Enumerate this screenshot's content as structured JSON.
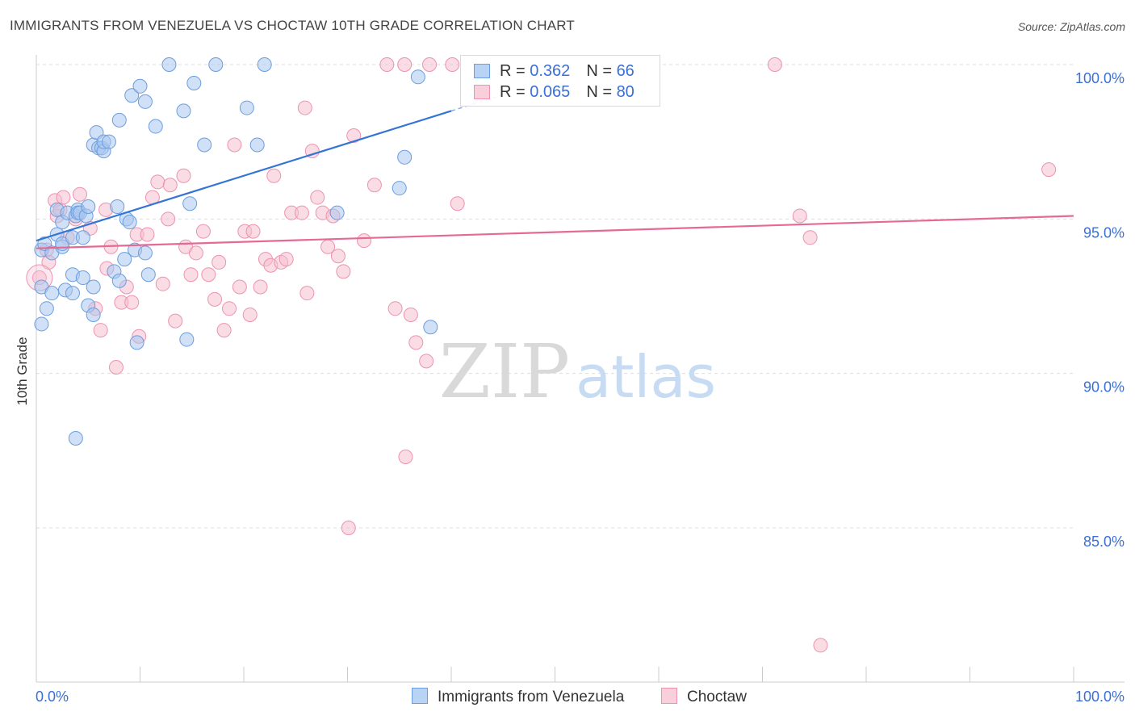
{
  "title": "IMMIGRANTS FROM VENEZUELA VS CHOCTAW 10TH GRADE CORRELATION CHART",
  "source": "Source: ZipAtlas.com",
  "watermark": {
    "zip": "ZIP",
    "atlas": "atlas"
  },
  "legend": {
    "rows": [
      {
        "r_label": "R = ",
        "r_value": "0.362",
        "n_label": "N = ",
        "n_value": "66"
      },
      {
        "r_label": "R = ",
        "r_value": "0.065",
        "n_label": "N = ",
        "n_value": "80"
      }
    ]
  },
  "bottom_legend": [
    "Immigrants from Venezuela",
    "Choctaw"
  ],
  "colors": {
    "blue_fill": "#a9c7ef",
    "blue_stroke": "#6a9ee0",
    "blue_line": "#3474d4",
    "pink_fill": "#f6bfd0",
    "pink_stroke": "#ec93b0",
    "pink_line": "#e46a94",
    "tick_label": "#3a6fd8"
  },
  "chart_data": {
    "type": "scatter",
    "title": "IMMIGRANTS FROM VENEZUELA VS CHOCTAW 10TH GRADE CORRELATION CHART",
    "xlabel": "",
    "ylabel": "10th Grade",
    "xlim": [
      0,
      100
    ],
    "ylim": [
      80.5,
      100.8
    ],
    "x_tick_labels": [
      "0.0%",
      "100.0%"
    ],
    "y_ticks": [
      85,
      90,
      95,
      100
    ],
    "y_tick_labels": [
      "85.0%",
      "90.0%",
      "95.0%",
      "100.0%"
    ],
    "grid": true,
    "legend_position": "top-center",
    "series": [
      {
        "name": "Immigrants from Venezuela",
        "color": "#6a9ee0",
        "trend": {
          "x": [
            0,
            40
          ],
          "y": [
            94.3,
            98.5
          ]
        },
        "points": [
          [
            0.5,
            94.0
          ],
          [
            0.5,
            92.8
          ],
          [
            0.5,
            91.6
          ],
          [
            0.8,
            94.2
          ],
          [
            1.0,
            92.1
          ],
          [
            1.5,
            93.9
          ],
          [
            1.5,
            92.6
          ],
          [
            2.0,
            94.5
          ],
          [
            2.0,
            95.3
          ],
          [
            2.5,
            94.1
          ],
          [
            2.5,
            94.9
          ],
          [
            2.5,
            94.2
          ],
          [
            2.8,
            92.7
          ],
          [
            3.0,
            95.2
          ],
          [
            3.5,
            93.2
          ],
          [
            3.5,
            92.6
          ],
          [
            3.5,
            94.4
          ],
          [
            3.8,
            95.1
          ],
          [
            4.0,
            95.3
          ],
          [
            4.5,
            94.4
          ],
          [
            4.0,
            95.2
          ],
          [
            4.2,
            95.2
          ],
          [
            4.5,
            93.1
          ],
          [
            4.8,
            95.1
          ],
          [
            5.0,
            92.2
          ],
          [
            5.0,
            95.4
          ],
          [
            5.5,
            92.8
          ],
          [
            5.5,
            91.9
          ],
          [
            5.5,
            97.4
          ],
          [
            5.8,
            97.8
          ],
          [
            6.0,
            97.3
          ],
          [
            6.3,
            97.3
          ],
          [
            6.5,
            97.2
          ],
          [
            6.5,
            97.5
          ],
          [
            7.0,
            97.5
          ],
          [
            7.5,
            93.3
          ],
          [
            7.8,
            95.4
          ],
          [
            8.0,
            93.0
          ],
          [
            8.0,
            98.2
          ],
          [
            8.5,
            93.7
          ],
          [
            8.7,
            95.0
          ],
          [
            9.0,
            94.9
          ],
          [
            9.2,
            99.0
          ],
          [
            9.5,
            94.0
          ],
          [
            9.7,
            91.0
          ],
          [
            10.0,
            99.3
          ],
          [
            10.5,
            98.8
          ],
          [
            10.5,
            93.9
          ],
          [
            10.8,
            93.2
          ],
          [
            11.5,
            98.0
          ],
          [
            12.8,
            100.0
          ],
          [
            14.2,
            98.5
          ],
          [
            14.5,
            91.1
          ],
          [
            14.8,
            95.5
          ],
          [
            15.2,
            99.4
          ],
          [
            16.2,
            97.4
          ],
          [
            17.3,
            100.0
          ],
          [
            20.3,
            98.6
          ],
          [
            21.3,
            97.4
          ],
          [
            22.0,
            100.0
          ],
          [
            29.0,
            95.2
          ],
          [
            35.0,
            96.0
          ],
          [
            35.5,
            97.0
          ],
          [
            36.8,
            99.6
          ],
          [
            38.0,
            91.5
          ],
          [
            3.8,
            87.9
          ]
        ]
      },
      {
        "name": "Choctaw",
        "color": "#ec93b0",
        "trend": {
          "x": [
            0,
            100
          ],
          "y": [
            94.05,
            95.1
          ]
        },
        "points": [
          [
            0.3,
            93.1
          ],
          [
            1.0,
            94.0
          ],
          [
            1.2,
            93.6
          ],
          [
            1.8,
            95.6
          ],
          [
            2.0,
            95.1
          ],
          [
            2.3,
            95.3
          ],
          [
            2.6,
            95.7
          ],
          [
            3.0,
            94.4
          ],
          [
            3.8,
            95.0
          ],
          [
            4.2,
            95.8
          ],
          [
            5.2,
            94.7
          ],
          [
            5.7,
            92.1
          ],
          [
            6.2,
            91.4
          ],
          [
            6.7,
            95.3
          ],
          [
            6.8,
            93.4
          ],
          [
            7.2,
            94.1
          ],
          [
            7.7,
            90.2
          ],
          [
            8.2,
            92.3
          ],
          [
            8.7,
            92.8
          ],
          [
            9.2,
            92.3
          ],
          [
            9.7,
            94.5
          ],
          [
            9.9,
            91.2
          ],
          [
            10.7,
            94.5
          ],
          [
            11.2,
            95.7
          ],
          [
            11.7,
            96.2
          ],
          [
            12.2,
            92.9
          ],
          [
            12.7,
            95.0
          ],
          [
            12.9,
            96.1
          ],
          [
            13.4,
            91.7
          ],
          [
            14.2,
            96.4
          ],
          [
            14.4,
            94.1
          ],
          [
            14.9,
            93.2
          ],
          [
            15.4,
            93.9
          ],
          [
            16.1,
            94.6
          ],
          [
            16.6,
            93.2
          ],
          [
            17.2,
            92.4
          ],
          [
            17.6,
            93.6
          ],
          [
            18.1,
            91.4
          ],
          [
            18.6,
            92.1
          ],
          [
            19.1,
            97.4
          ],
          [
            19.6,
            92.8
          ],
          [
            20.1,
            94.6
          ],
          [
            20.6,
            91.9
          ],
          [
            20.9,
            94.6
          ],
          [
            21.6,
            92.8
          ],
          [
            22.1,
            93.7
          ],
          [
            22.6,
            93.5
          ],
          [
            22.9,
            96.4
          ],
          [
            23.6,
            93.6
          ],
          [
            24.1,
            93.7
          ],
          [
            24.6,
            95.2
          ],
          [
            25.6,
            95.2
          ],
          [
            25.9,
            98.6
          ],
          [
            26.1,
            92.6
          ],
          [
            26.6,
            97.2
          ],
          [
            27.1,
            95.7
          ],
          [
            27.6,
            95.2
          ],
          [
            28.1,
            94.1
          ],
          [
            28.6,
            95.1
          ],
          [
            29.1,
            93.8
          ],
          [
            29.6,
            93.3
          ],
          [
            30.1,
            85.0
          ],
          [
            30.6,
            97.7
          ],
          [
            31.6,
            94.3
          ],
          [
            32.6,
            96.1
          ],
          [
            34.6,
            92.1
          ],
          [
            35.6,
            87.3
          ],
          [
            36.1,
            91.9
          ],
          [
            36.6,
            91.0
          ],
          [
            37.6,
            90.4
          ],
          [
            40.6,
            95.5
          ],
          [
            73.6,
            95.1
          ],
          [
            74.6,
            94.4
          ],
          [
            75.6,
            81.2
          ],
          [
            97.6,
            96.6
          ],
          [
            37.9,
            100.0
          ],
          [
            40.1,
            100.0
          ],
          [
            33.8,
            100.0
          ],
          [
            35.5,
            100.0
          ],
          [
            71.2,
            100.0
          ]
        ]
      }
    ]
  }
}
